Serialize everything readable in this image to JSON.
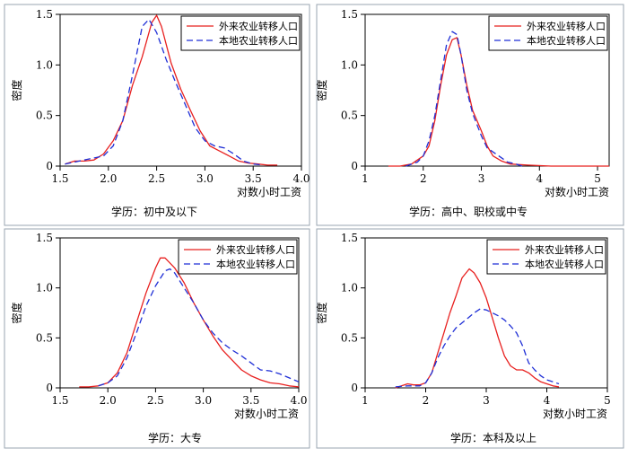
{
  "legend_labels": [
    "外来农业转移人口",
    "本地农业转移人口"
  ],
  "series_colors": {
    "migrant": "#e8201f",
    "local": "#1f2fd6"
  },
  "chart_data": [
    {
      "type": "line",
      "caption": "学历：初中及以下",
      "xlabel": "对数小时工资",
      "ylabel": "密度",
      "xlim": [
        1.5,
        4.0
      ],
      "ylim": [
        0,
        1.5
      ],
      "xticks": [
        "1.5",
        "2.0",
        "2.5",
        "3.0",
        "3.5",
        "4.0"
      ],
      "xtick_values": [
        1.5,
        2.0,
        2.5,
        3.0,
        3.5,
        4.0
      ],
      "yticks": [
        "0",
        "0.5",
        "1.0",
        "1.5"
      ],
      "ytick_values": [
        0,
        0.5,
        1.0,
        1.5
      ],
      "series": [
        {
          "name": "外来农业转移人口",
          "style": "solid",
          "color": "#e8201f",
          "points": [
            [
              1.55,
              0.02
            ],
            [
              1.65,
              0.05
            ],
            [
              1.75,
              0.05
            ],
            [
              1.85,
              0.06
            ],
            [
              1.95,
              0.12
            ],
            [
              2.05,
              0.25
            ],
            [
              2.15,
              0.45
            ],
            [
              2.25,
              0.8
            ],
            [
              2.35,
              1.08
            ],
            [
              2.45,
              1.42
            ],
            [
              2.5,
              1.49
            ],
            [
              2.55,
              1.38
            ],
            [
              2.65,
              1.02
            ],
            [
              2.75,
              0.76
            ],
            [
              2.85,
              0.55
            ],
            [
              2.95,
              0.35
            ],
            [
              3.05,
              0.2
            ],
            [
              3.15,
              0.15
            ],
            [
              3.25,
              0.1
            ],
            [
              3.35,
              0.05
            ],
            [
              3.45,
              0.03
            ],
            [
              3.55,
              0.02
            ],
            [
              3.65,
              0.01
            ],
            [
              3.75,
              0.01
            ]
          ]
        },
        {
          "name": "本地农业转移人口",
          "style": "dashed",
          "color": "#1f2fd6",
          "points": [
            [
              1.55,
              0.02
            ],
            [
              1.65,
              0.04
            ],
            [
              1.75,
              0.06
            ],
            [
              1.85,
              0.08
            ],
            [
              1.95,
              0.1
            ],
            [
              2.05,
              0.2
            ],
            [
              2.15,
              0.45
            ],
            [
              2.25,
              0.9
            ],
            [
              2.35,
              1.38
            ],
            [
              2.42,
              1.45
            ],
            [
              2.5,
              1.32
            ],
            [
              2.6,
              1.05
            ],
            [
              2.7,
              0.82
            ],
            [
              2.8,
              0.6
            ],
            [
              2.9,
              0.38
            ],
            [
              3.0,
              0.25
            ],
            [
              3.1,
              0.2
            ],
            [
              3.2,
              0.18
            ],
            [
              3.3,
              0.12
            ],
            [
              3.4,
              0.05
            ],
            [
              3.5,
              0.02
            ],
            [
              3.6,
              0.01
            ]
          ]
        }
      ]
    },
    {
      "type": "line",
      "caption": "学历：高中、职校或中专",
      "xlabel": "对数小时工资",
      "ylabel": "密度",
      "xlim": [
        1.0,
        5.2
      ],
      "ylim": [
        0,
        1.5
      ],
      "xticks": [
        "1",
        "2",
        "3",
        "4",
        "5"
      ],
      "xtick_values": [
        1,
        2,
        3,
        4,
        5
      ],
      "yticks": [
        "0",
        "0.5",
        "1.0",
        "1.5"
      ],
      "ytick_values": [
        0,
        0.5,
        1.0,
        1.5
      ],
      "series": [
        {
          "name": "外来农业转移人口",
          "style": "solid",
          "color": "#e8201f",
          "points": [
            [
              1.4,
              0.0
            ],
            [
              1.6,
              0.0
            ],
            [
              1.8,
              0.02
            ],
            [
              2.0,
              0.1
            ],
            [
              2.1,
              0.2
            ],
            [
              2.2,
              0.45
            ],
            [
              2.3,
              0.8
            ],
            [
              2.4,
              1.1
            ],
            [
              2.5,
              1.25
            ],
            [
              2.58,
              1.27
            ],
            [
              2.65,
              1.1
            ],
            [
              2.75,
              0.8
            ],
            [
              2.85,
              0.55
            ],
            [
              3.0,
              0.35
            ],
            [
              3.1,
              0.2
            ],
            [
              3.2,
              0.1
            ],
            [
              3.35,
              0.05
            ],
            [
              3.5,
              0.02
            ],
            [
              3.8,
              0.01
            ],
            [
              4.2,
              0.0
            ],
            [
              5.2,
              0.0
            ]
          ]
        },
        {
          "name": "本地农业转移人口",
          "style": "dashed",
          "color": "#1f2fd6",
          "points": [
            [
              1.7,
              0.0
            ],
            [
              1.9,
              0.04
            ],
            [
              2.0,
              0.1
            ],
            [
              2.1,
              0.25
            ],
            [
              2.2,
              0.5
            ],
            [
              2.3,
              0.85
            ],
            [
              2.4,
              1.2
            ],
            [
              2.5,
              1.33
            ],
            [
              2.58,
              1.3
            ],
            [
              2.65,
              1.1
            ],
            [
              2.75,
              0.75
            ],
            [
              2.85,
              0.52
            ],
            [
              3.0,
              0.3
            ],
            [
              3.1,
              0.18
            ],
            [
              3.3,
              0.1
            ],
            [
              3.45,
              0.04
            ],
            [
              3.6,
              0.02
            ],
            [
              3.7,
              0.0
            ]
          ]
        }
      ]
    },
    {
      "type": "line",
      "caption": "学历：大专",
      "xlabel": "对数小时工资",
      "ylabel": "密度",
      "xlim": [
        1.5,
        4.0
      ],
      "ylim": [
        0,
        1.5
      ],
      "xticks": [
        "1.5",
        "2.0",
        "2.5",
        "3.0",
        "3.5",
        "4.0"
      ],
      "xtick_values": [
        1.5,
        2.0,
        2.5,
        3.0,
        3.5,
        4.0
      ],
      "yticks": [
        "0",
        "0.5",
        "1.0",
        "1.5"
      ],
      "ytick_values": [
        0,
        0.5,
        1.0,
        1.5
      ],
      "series": [
        {
          "name": "外来农业转移人口",
          "style": "solid",
          "color": "#e8201f",
          "points": [
            [
              1.7,
              0.01
            ],
            [
              1.8,
              0.01
            ],
            [
              1.9,
              0.02
            ],
            [
              2.0,
              0.05
            ],
            [
              2.1,
              0.15
            ],
            [
              2.2,
              0.35
            ],
            [
              2.3,
              0.65
            ],
            [
              2.4,
              0.95
            ],
            [
              2.5,
              1.2
            ],
            [
              2.55,
              1.3
            ],
            [
              2.6,
              1.3
            ],
            [
              2.7,
              1.2
            ],
            [
              2.8,
              1.05
            ],
            [
              2.9,
              0.85
            ],
            [
              3.0,
              0.68
            ],
            [
              3.1,
              0.52
            ],
            [
              3.2,
              0.38
            ],
            [
              3.3,
              0.28
            ],
            [
              3.4,
              0.18
            ],
            [
              3.5,
              0.12
            ],
            [
              3.6,
              0.08
            ],
            [
              3.7,
              0.05
            ],
            [
              3.8,
              0.04
            ],
            [
              3.9,
              0.02
            ],
            [
              4.0,
              0.01
            ]
          ]
        },
        {
          "name": "本地农业转移人口",
          "style": "dashed",
          "color": "#1f2fd6",
          "points": [
            [
              1.9,
              0.02
            ],
            [
              2.0,
              0.05
            ],
            [
              2.1,
              0.12
            ],
            [
              2.2,
              0.3
            ],
            [
              2.3,
              0.55
            ],
            [
              2.4,
              0.82
            ],
            [
              2.5,
              1.02
            ],
            [
              2.6,
              1.17
            ],
            [
              2.65,
              1.19
            ],
            [
              2.7,
              1.15
            ],
            [
              2.8,
              1.0
            ],
            [
              2.9,
              0.85
            ],
            [
              3.0,
              0.68
            ],
            [
              3.1,
              0.55
            ],
            [
              3.2,
              0.45
            ],
            [
              3.3,
              0.38
            ],
            [
              3.4,
              0.32
            ],
            [
              3.5,
              0.25
            ],
            [
              3.6,
              0.18
            ],
            [
              3.7,
              0.17
            ],
            [
              3.8,
              0.14
            ],
            [
              3.9,
              0.1
            ],
            [
              4.0,
              0.06
            ]
          ]
        }
      ]
    },
    {
      "type": "line",
      "caption": "学历：本科及以上",
      "xlabel": "对数小时工资",
      "ylabel": "密度",
      "xlim": [
        1.0,
        5.0
      ],
      "ylim": [
        0,
        1.5
      ],
      "xticks": [
        "1",
        "2",
        "3",
        "4",
        "5"
      ],
      "xtick_values": [
        1,
        2,
        3,
        4,
        5
      ],
      "yticks": [
        "0",
        "0.5",
        "1.0",
        "1.5"
      ],
      "ytick_values": [
        0,
        0.5,
        1.0,
        1.5
      ],
      "series": [
        {
          "name": "外来农业转移人口",
          "style": "solid",
          "color": "#e8201f",
          "points": [
            [
              1.5,
              0.0
            ],
            [
              1.6,
              0.02
            ],
            [
              1.7,
              0.04
            ],
            [
              1.8,
              0.03
            ],
            [
              1.9,
              0.03
            ],
            [
              2.0,
              0.05
            ],
            [
              2.1,
              0.15
            ],
            [
              2.2,
              0.35
            ],
            [
              2.3,
              0.55
            ],
            [
              2.4,
              0.75
            ],
            [
              2.5,
              0.92
            ],
            [
              2.6,
              1.1
            ],
            [
              2.72,
              1.19
            ],
            [
              2.8,
              1.15
            ],
            [
              2.9,
              1.05
            ],
            [
              3.0,
              0.9
            ],
            [
              3.1,
              0.7
            ],
            [
              3.2,
              0.5
            ],
            [
              3.3,
              0.32
            ],
            [
              3.4,
              0.22
            ],
            [
              3.5,
              0.18
            ],
            [
              3.6,
              0.18
            ],
            [
              3.7,
              0.15
            ],
            [
              3.8,
              0.1
            ],
            [
              3.9,
              0.06
            ],
            [
              4.0,
              0.04
            ],
            [
              4.1,
              0.02
            ],
            [
              4.2,
              0.01
            ]
          ]
        },
        {
          "name": "本地农业转移人口",
          "style": "dashed",
          "color": "#1f2fd6",
          "points": [
            [
              1.5,
              0.01
            ],
            [
              1.7,
              0.02
            ],
            [
              1.9,
              0.02
            ],
            [
              2.0,
              0.05
            ],
            [
              2.1,
              0.15
            ],
            [
              2.2,
              0.3
            ],
            [
              2.3,
              0.42
            ],
            [
              2.4,
              0.52
            ],
            [
              2.5,
              0.6
            ],
            [
              2.6,
              0.65
            ],
            [
              2.7,
              0.7
            ],
            [
              2.8,
              0.75
            ],
            [
              2.9,
              0.79
            ],
            [
              3.0,
              0.78
            ],
            [
              3.1,
              0.75
            ],
            [
              3.2,
              0.72
            ],
            [
              3.3,
              0.68
            ],
            [
              3.4,
              0.62
            ],
            [
              3.5,
              0.55
            ],
            [
              3.6,
              0.42
            ],
            [
              3.7,
              0.25
            ],
            [
              3.8,
              0.18
            ],
            [
              3.9,
              0.12
            ],
            [
              4.0,
              0.08
            ],
            [
              4.1,
              0.06
            ],
            [
              4.2,
              0.04
            ]
          ]
        }
      ]
    }
  ]
}
